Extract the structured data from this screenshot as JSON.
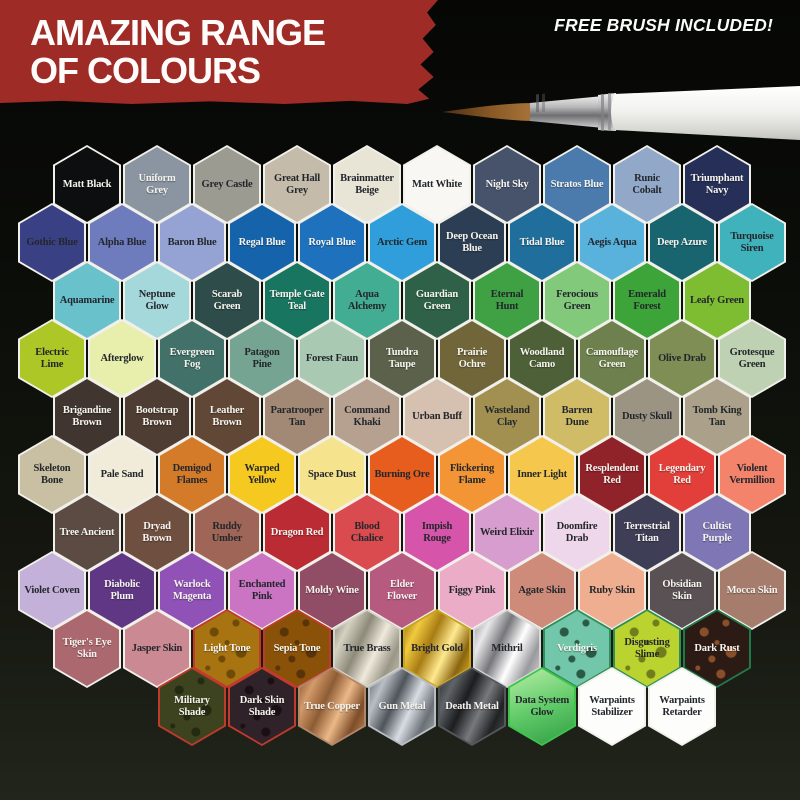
{
  "header": {
    "title_line1": "AMAZING RANGE",
    "title_line2": "OF COLOURS",
    "badge": "FREE BRUSH INCLUDED!",
    "banner_color": "#9e2b26"
  },
  "palette": {
    "rows": [
      [
        {
          "label": "Matt Black",
          "color": "#0c0e10",
          "text": "l"
        },
        {
          "label": "Uniform Grey",
          "color": "#8b95a2",
          "text": "l"
        },
        {
          "label": "Grey Castle",
          "color": "#9c9b91",
          "text": "d"
        },
        {
          "label": "Great Hall Grey",
          "color": "#c5bbaa",
          "text": "d"
        },
        {
          "label": "Brainmatter Beige",
          "color": "#e9e5d6",
          "text": "d"
        },
        {
          "label": "Matt White",
          "color": "#f8f7f3",
          "text": "d"
        },
        {
          "label": "Night Sky",
          "color": "#46536b",
          "text": "l"
        },
        {
          "label": "Stratos Blue",
          "color": "#4b7bad",
          "text": "l"
        },
        {
          "label": "Runic Cobalt",
          "color": "#92a8c9",
          "text": "d"
        },
        {
          "label": "Triumphant Navy",
          "color": "#262f58",
          "text": "l"
        }
      ],
      [
        {
          "label": "Gothic Blue",
          "color": "#3a4084",
          "text": "d"
        },
        {
          "label": "Alpha Blue",
          "color": "#6e7cbe",
          "text": "d"
        },
        {
          "label": "Baron Blue",
          "color": "#95a3d4",
          "text": "d"
        },
        {
          "label": "Regal Blue",
          "color": "#1563ab",
          "text": "l"
        },
        {
          "label": "Royal Blue",
          "color": "#1e72bd",
          "text": "l"
        },
        {
          "label": "Arctic Gem",
          "color": "#2f9edb",
          "text": "d"
        },
        {
          "label": "Deep Ocean Blue",
          "color": "#2b3e53",
          "text": "l"
        },
        {
          "label": "Tidal Blue",
          "color": "#206e9b",
          "text": "l"
        },
        {
          "label": "Aegis Aqua",
          "color": "#58b2dc",
          "text": "d"
        },
        {
          "label": "Deep Azure",
          "color": "#186570",
          "text": "l"
        },
        {
          "label": "Turquoise Siren",
          "color": "#40b2bb",
          "text": "d"
        }
      ],
      [
        {
          "label": "Aquamarine",
          "color": "#69c1cc",
          "text": "d"
        },
        {
          "label": "Neptune Glow",
          "color": "#a5d8da",
          "text": "d"
        },
        {
          "label": "Scarab Green",
          "color": "#2e4c49",
          "text": "l"
        },
        {
          "label": "Temple Gate Teal",
          "color": "#187560",
          "text": "l"
        },
        {
          "label": "Aqua Alchemy",
          "color": "#42ad92",
          "text": "d"
        },
        {
          "label": "Guardian Green",
          "color": "#2e6147",
          "text": "l"
        },
        {
          "label": "Eternal Hunt",
          "color": "#3fa044",
          "text": "d"
        },
        {
          "label": "Ferocious Green",
          "color": "#82c97c",
          "text": "d"
        },
        {
          "label": "Emerald Forest",
          "color": "#3ca439",
          "text": "d"
        },
        {
          "label": "Leafy Green",
          "color": "#7ebc31",
          "text": "d"
        }
      ],
      [
        {
          "label": "Electric Lime",
          "color": "#acc726",
          "text": "d"
        },
        {
          "label": "Afterglow",
          "color": "#e8efad",
          "text": "d"
        },
        {
          "label": "Evergreen Fog",
          "color": "#427169",
          "text": "l"
        },
        {
          "label": "Patagon Pine",
          "color": "#76a493",
          "text": "d"
        },
        {
          "label": "Forest Faun",
          "color": "#a9c9b2",
          "text": "d"
        },
        {
          "label": "Tundra Taupe",
          "color": "#5b614a",
          "text": "l"
        },
        {
          "label": "Prairie Ochre",
          "color": "#70663a",
          "text": "l"
        },
        {
          "label": "Woodland Camo",
          "color": "#4e6038",
          "text": "l"
        },
        {
          "label": "Camouflage Green",
          "color": "#6d804d",
          "text": "l"
        },
        {
          "label": "Olive Drab",
          "color": "#7e8e55",
          "text": "d"
        },
        {
          "label": "Grotesque Green",
          "color": "#bed1b2",
          "text": "d"
        }
      ],
      [
        {
          "label": "Brigandine Brown",
          "color": "#40362f",
          "text": "l"
        },
        {
          "label": "Bootstrap Brown",
          "color": "#4e3d32",
          "text": "l"
        },
        {
          "label": "Leather Brown",
          "color": "#604736",
          "text": "l"
        },
        {
          "label": "Paratrooper Tan",
          "color": "#a28976",
          "text": "d"
        },
        {
          "label": "Command Khaki",
          "color": "#b6a190",
          "text": "d"
        },
        {
          "label": "Urban Buff",
          "color": "#d6c0af",
          "text": "d"
        },
        {
          "label": "Wasteland Clay",
          "color": "#a29051",
          "text": "d"
        },
        {
          "label": "Barren Dune",
          "color": "#d0bc67",
          "text": "d"
        },
        {
          "label": "Dusty Skull",
          "color": "#9c9483",
          "text": "d"
        },
        {
          "label": "Tomb King Tan",
          "color": "#aba18a",
          "text": "d"
        }
      ],
      [
        {
          "label": "Skeleton Bone",
          "color": "#c9c0a3",
          "text": "d"
        },
        {
          "label": "Pale Sand",
          "color": "#f1ebda",
          "text": "d"
        },
        {
          "label": "Demigod Flames",
          "color": "#d47b29",
          "text": "d"
        },
        {
          "label": "Warped Yellow",
          "color": "#f5c920",
          "text": "d"
        },
        {
          "label": "Space Dust",
          "color": "#f5e38d",
          "text": "d"
        },
        {
          "label": "Burning Ore",
          "color": "#e65d1e",
          "text": "d"
        },
        {
          "label": "Flickering Flame",
          "color": "#f39535",
          "text": "d"
        },
        {
          "label": "Inner Light",
          "color": "#f5c84d",
          "text": "d"
        },
        {
          "label": "Resplendent Red",
          "color": "#90222a",
          "text": "l"
        },
        {
          "label": "Legendary Red",
          "color": "#e33f3a",
          "text": "l"
        },
        {
          "label": "Violent Vermillion",
          "color": "#f3836b",
          "text": "d"
        }
      ],
      [
        {
          "label": "Tree Ancient",
          "color": "#5b4b43",
          "text": "l"
        },
        {
          "label": "Dryad Brown",
          "color": "#6e4f40",
          "text": "l"
        },
        {
          "label": "Ruddy Umber",
          "color": "#9f6657",
          "text": "d"
        },
        {
          "label": "Dragon Red",
          "color": "#bb2b34",
          "text": "l"
        },
        {
          "label": "Blood Chalice",
          "color": "#da4b4f",
          "text": "d"
        },
        {
          "label": "Impish Rouge",
          "color": "#d654aa",
          "text": "d"
        },
        {
          "label": "Weird Elixir",
          "color": "#d79dcf",
          "text": "d"
        },
        {
          "label": "Doomfire Drab",
          "color": "#efd7eb",
          "text": "d"
        },
        {
          "label": "Terrestrial Titan",
          "color": "#3e3e56",
          "text": "l"
        },
        {
          "label": "Cultist Purple",
          "color": "#7f77b5",
          "text": "l"
        }
      ],
      [
        {
          "label": "Violet Coven",
          "color": "#c3b1d9",
          "text": "d"
        },
        {
          "label": "Diabolic Plum",
          "color": "#5f3784",
          "text": "l"
        },
        {
          "label": "Warlock Magenta",
          "color": "#9052b7",
          "text": "l"
        },
        {
          "label": "Enchanted Pink",
          "color": "#ca74c3",
          "text": "d"
        },
        {
          "label": "Moldy Wine",
          "color": "#914d65",
          "text": "l"
        },
        {
          "label": "Elder Flower",
          "color": "#b65a80",
          "text": "l"
        },
        {
          "label": "Figgy Pink",
          "color": "#ebacc7",
          "text": "d"
        },
        {
          "label": "Agate Skin",
          "color": "#ce8b79",
          "text": "d"
        },
        {
          "label": "Ruby Skin",
          "color": "#efae8f",
          "text": "d"
        },
        {
          "label": "Obsidian Skin",
          "color": "#595153",
          "text": "l"
        },
        {
          "label": "Mocca Skin",
          "color": "#a67c6c",
          "text": "l"
        }
      ],
      [
        {
          "label": "Tiger's Eye Skin",
          "color": "#ab696f",
          "text": "l"
        },
        {
          "label": "Jasper Skin",
          "color": "#cb8993",
          "text": "d"
        },
        {
          "label": "Light Tone",
          "color": "#a87412",
          "text": "l",
          "border": "#c23a2c",
          "splat": "#6e4a06"
        },
        {
          "label": "Sepia Tone",
          "color": "#8a5208",
          "text": "l",
          "border": "#c23a2c",
          "splat": "#58330a"
        },
        {
          "label": "True Brass",
          "text": "d",
          "border": "#d6d3c8",
          "metal": [
            "#7d7a6c",
            "#d6d2c2",
            "#8e8a7a",
            "#efeadb",
            "#9a9688",
            "#c9c5b5"
          ]
        },
        {
          "label": "Bright Gold",
          "text": "d",
          "border": "#caa41e",
          "metal": [
            "#8a6410",
            "#f2ca3e",
            "#a87c14",
            "#ffe98e",
            "#8a6410",
            "#e8bc2e"
          ]
        },
        {
          "label": "Mithril",
          "text": "d",
          "border": "#d9d9db",
          "metal": [
            "#8f8f93",
            "#e8e8ea",
            "#77777b",
            "#ffffff",
            "#9a9a9e",
            "#d8d8da"
          ]
        },
        {
          "label": "Verdigris",
          "color": "#72c7aa",
          "text": "l",
          "border": "#2f8f5a",
          "splat": "#2a5a46"
        },
        {
          "label": "Disgusting Slime",
          "color": "#bbd32f",
          "text": "d",
          "border": "#2f8f5a",
          "splat": "#6f7d1d"
        },
        {
          "label": "Dark Rust",
          "color": "#2c1b14",
          "text": "l",
          "border": "#1f7a4a",
          "splat": "#8a4e2a"
        }
      ],
      [
        {
          "label": "Military Shade",
          "color": "#3d421f",
          "text": "l",
          "border": "#c23a2c",
          "splat": "#242a10"
        },
        {
          "label": "Dark Skin Shade",
          "color": "#2f2329",
          "text": "l",
          "border": "#c23a2c",
          "splat": "#1a1014"
        },
        {
          "label": "True Copper",
          "text": "l",
          "border": "#b0876a",
          "metal": [
            "#7e4e2a",
            "#d49a6a",
            "#8e5c34",
            "#ecb888",
            "#7e4e2a",
            "#c08858"
          ]
        },
        {
          "label": "Gun Metal",
          "text": "l",
          "border": "#b7bdc3",
          "metal": [
            "#595f65",
            "#b9bfc5",
            "#4e545a",
            "#d7dde2",
            "#6a7076",
            "#a7adb3"
          ]
        },
        {
          "label": "Death Metal",
          "text": "l",
          "border": "#55585b",
          "metal": [
            "#2a2c2e",
            "#606468",
            "#1b1d1f",
            "#77797d",
            "#202224",
            "#4a4e52"
          ]
        },
        {
          "label": "Data System Glow",
          "text": "d",
          "border": "#3fc54b",
          "metal": [
            "#b7eda8",
            "#63cc6a",
            "#2f9e44"
          ],
          "angle": 160
        },
        {
          "label": "Warpaints Stabilizer",
          "color": "#fdfdfc",
          "text": "d"
        },
        {
          "label": "Warpaints Retarder",
          "color": "#fdfdfc",
          "text": "d"
        }
      ]
    ]
  }
}
